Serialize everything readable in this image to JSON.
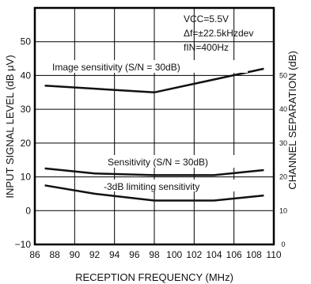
{
  "chart_data": {
    "type": "line",
    "title": "",
    "xlabel": "RECEPTION FREQUENCY (MHz)",
    "ylabel_left": "INPUT SIGNAL LEVEL (dB μV)",
    "ylabel_right": "CHANNEL SEPARATION (dB)",
    "xlim": [
      86,
      110
    ],
    "ylim_left": [
      -10,
      60
    ],
    "ylim_right": [
      0,
      60
    ],
    "x_ticks": [
      "86",
      "88",
      "90",
      "92",
      "94",
      "96",
      "98",
      "100",
      "102",
      "104",
      "106",
      "108",
      "110"
    ],
    "y_ticks_left": [
      "−10",
      "0",
      "10",
      "20",
      "30",
      "40",
      "50"
    ],
    "y_ticks_right": [
      "0",
      "10",
      "20",
      "30",
      "40",
      "50"
    ],
    "conditions": [
      "VCC=5.5V",
      "Δf=±22.5kHzdev",
      "fIN=400Hz"
    ],
    "grid": true,
    "series": [
      {
        "name": "Image sensitivity (S/N = 30dB)",
        "x": [
          87,
          98,
          109
        ],
        "y": [
          37,
          35,
          42
        ]
      },
      {
        "name": "Sensitivity (S/N = 30dB)",
        "x": [
          87,
          92,
          98,
          104,
          109
        ],
        "y": [
          12.5,
          11,
          10.5,
          10.5,
          12
        ]
      },
      {
        "name": "-3dB limiting sensitivity",
        "x": [
          87,
          92,
          98,
          104,
          109
        ],
        "y": [
          7.5,
          5,
          3,
          3,
          4.5
        ]
      }
    ]
  }
}
